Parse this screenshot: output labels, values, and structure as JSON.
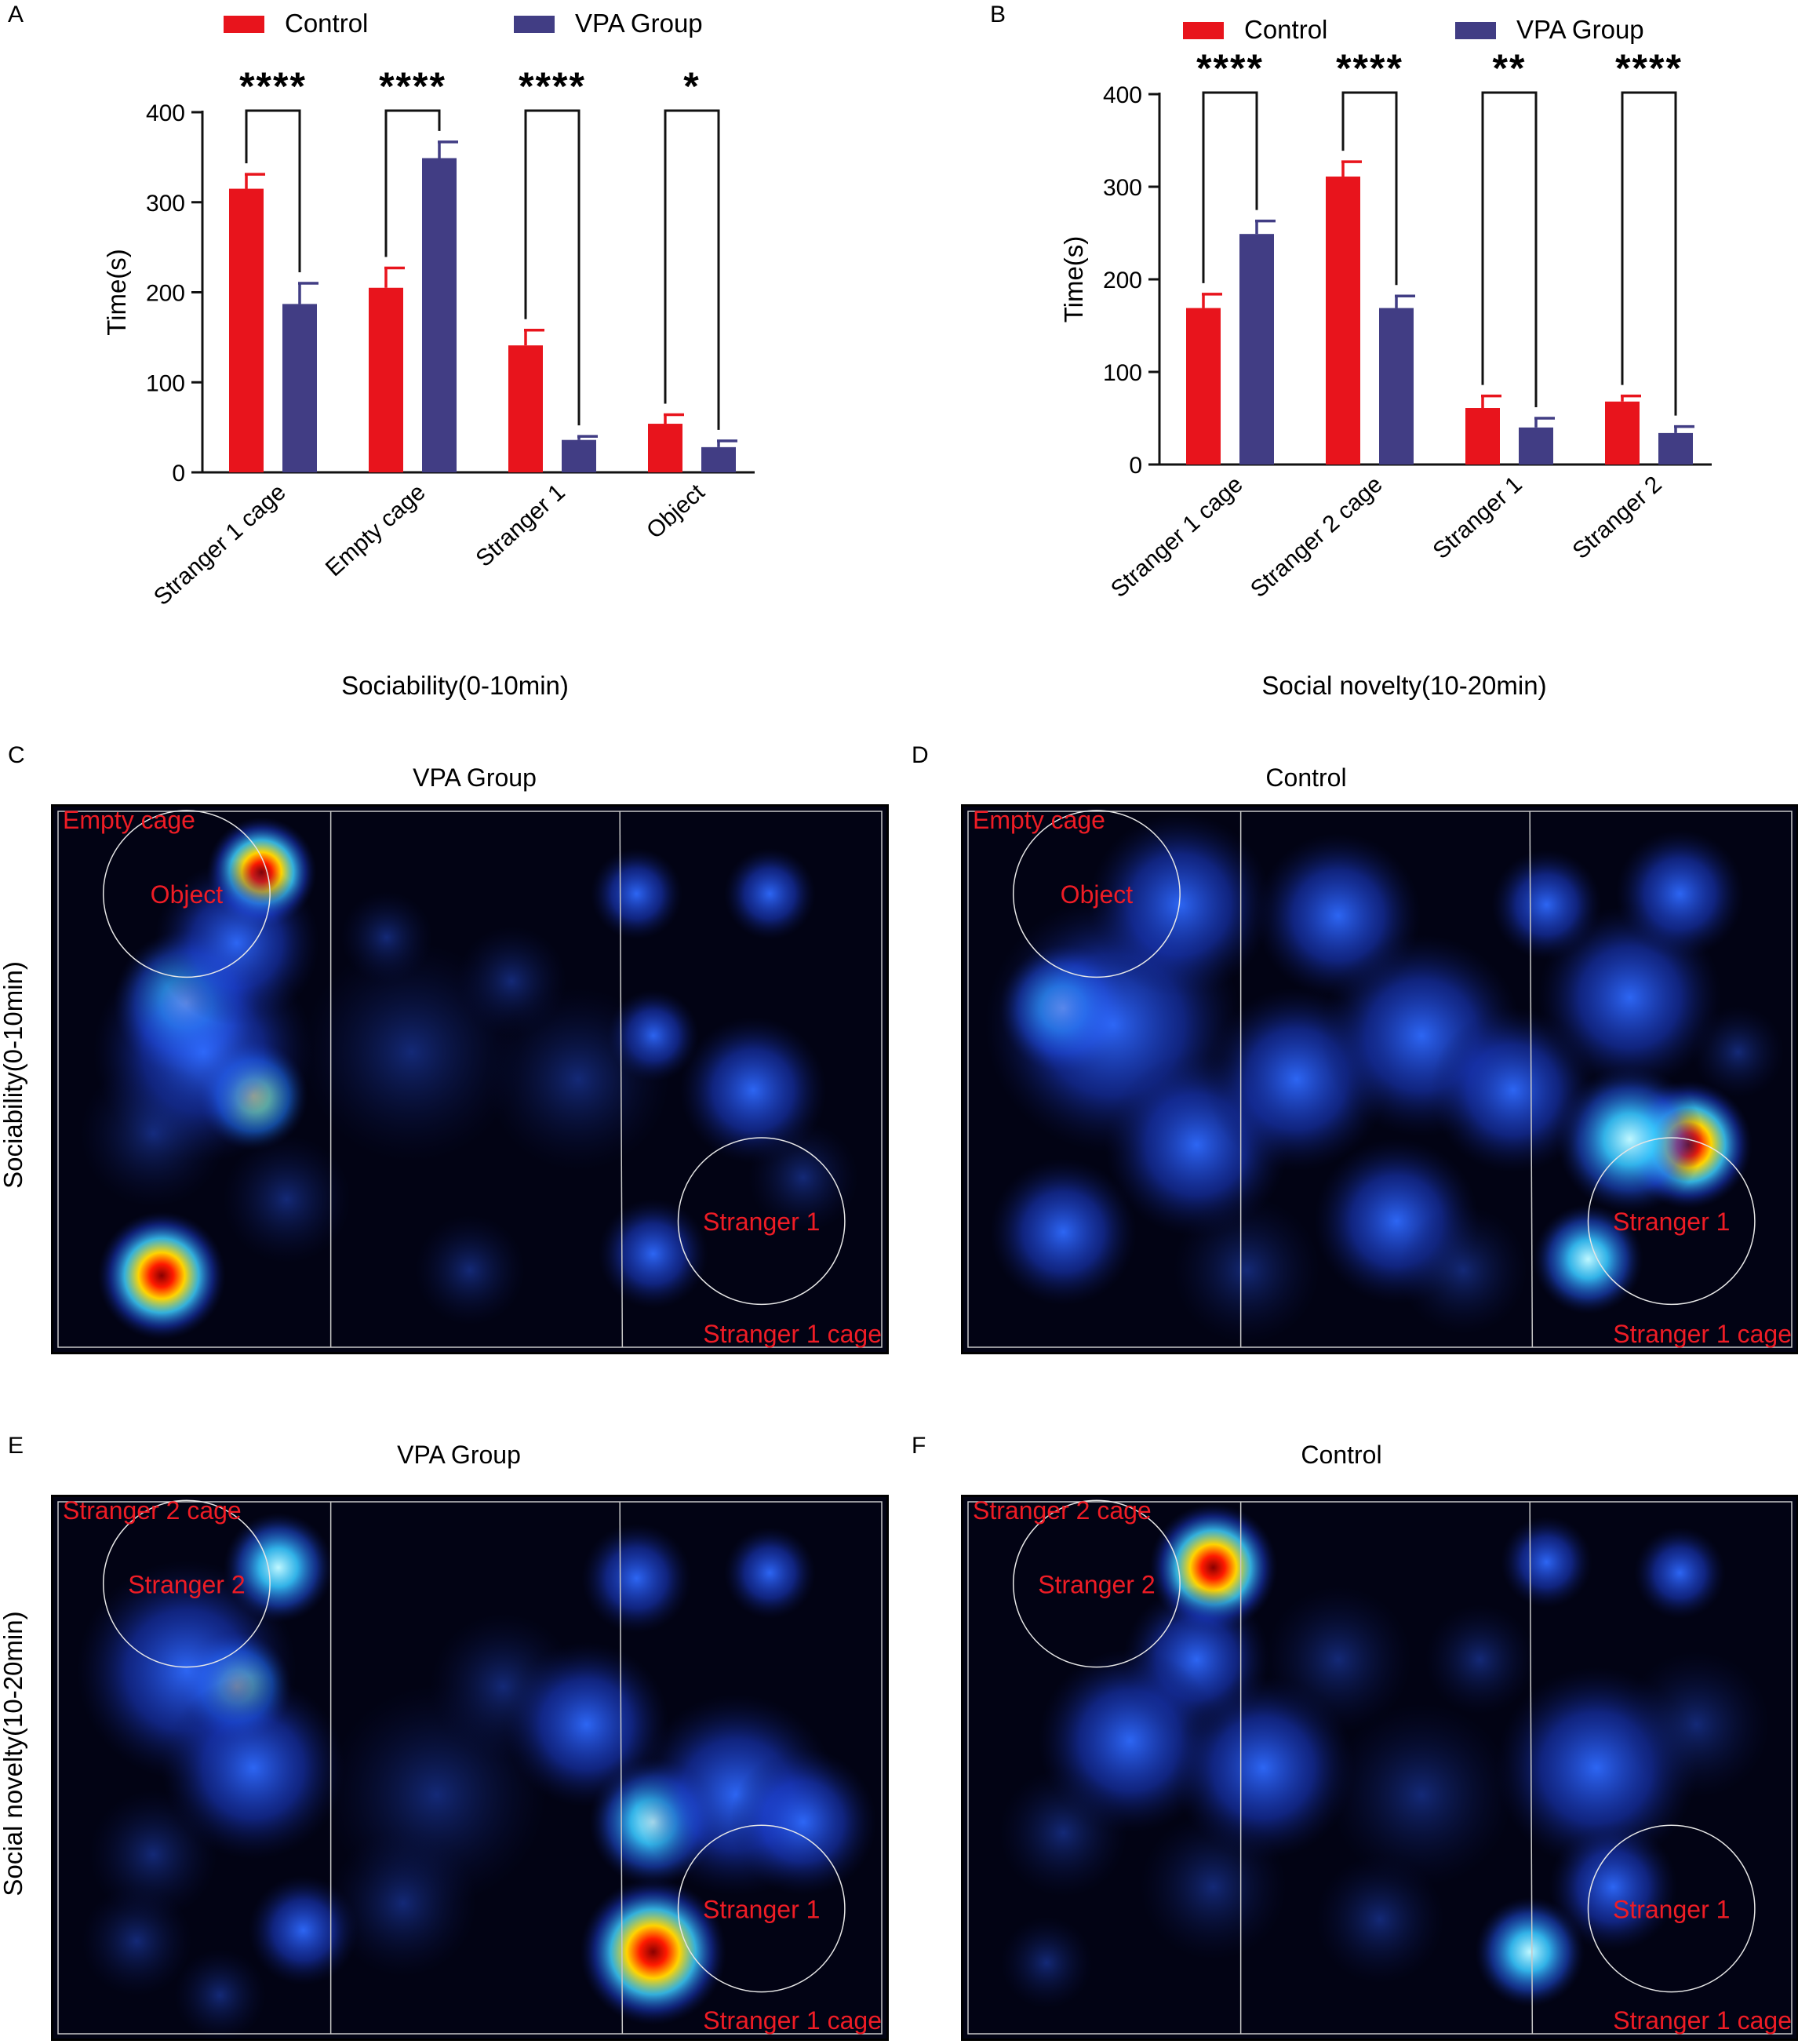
{
  "panels": {
    "A": "A",
    "B": "B",
    "C": "C",
    "D": "D",
    "E": "E",
    "F": "F"
  },
  "colors": {
    "control": "#e8141c",
    "vpa": "#413d84",
    "heat_bg": "#020314",
    "heat_label": "#ee1c25"
  },
  "chart_data": [
    {
      "type": "bar",
      "panel": "A",
      "legend": [
        "Control",
        "VPA Group"
      ],
      "categories": [
        "Stranger 1 cage",
        "Empty cage",
        "Stranger 1",
        "Object"
      ],
      "series": [
        {
          "name": "Control",
          "values": [
            315,
            205,
            141,
            54
          ],
          "errors": [
            16,
            22,
            17,
            10
          ]
        },
        {
          "name": "VPA Group",
          "values": [
            187,
            349,
            36,
            28
          ],
          "errors": [
            23,
            18,
            4,
            7
          ]
        }
      ],
      "significance": [
        "****",
        "****",
        "****",
        "*"
      ],
      "xlabel": "Sociability(0-10min)",
      "ylabel": "Time(s)",
      "ylim": [
        0,
        400
      ],
      "yticks": [
        0,
        100,
        200,
        300,
        400
      ]
    },
    {
      "type": "bar",
      "panel": "B",
      "legend": [
        "Control",
        "VPA Group"
      ],
      "categories": [
        "Stranger 1 cage",
        "Stranger 2 cage",
        "Stranger 1",
        "Stranger 2"
      ],
      "series": [
        {
          "name": "Control",
          "values": [
            169,
            311,
            61,
            68
          ],
          "errors": [
            15,
            16,
            13,
            6
          ]
        },
        {
          "name": "VPA Group",
          "values": [
            249,
            169,
            40,
            34
          ],
          "errors": [
            14,
            13,
            10,
            7
          ]
        }
      ],
      "significance": [
        "****",
        "****",
        "**",
        "****"
      ],
      "xlabel": "Social novelty(10-20min)",
      "ylabel": "Time(s)",
      "ylim": [
        0,
        400
      ],
      "yticks": [
        0,
        100,
        200,
        300,
        400
      ]
    }
  ],
  "heatmaps": {
    "row1_label": "Sociability(0-10min)",
    "row2_label": "Social novelty(10-20min)",
    "C": {
      "title": "VPA Group",
      "top_label": "Empty cage",
      "circle1_label": "Object",
      "circle2_label": "Stranger 1",
      "bottom_label": "Stranger 1 cage"
    },
    "D": {
      "title": "Control",
      "top_label": "Empty cage",
      "circle1_label": "Object",
      "circle2_label": "Stranger 1",
      "bottom_label": "Stranger 1 cage"
    },
    "E": {
      "title": "VPA Group",
      "top_label": "Stranger 2 cage",
      "circle1_label": "Stranger 2",
      "circle2_label": "Stranger 1",
      "bottom_label": "Stranger 1 cage"
    },
    "F": {
      "title": "Control",
      "top_label": "Stranger 2 cage",
      "circle1_label": "Stranger 2",
      "circle2_label": "Stranger 1",
      "bottom_label": "Stranger 1 cage"
    }
  }
}
